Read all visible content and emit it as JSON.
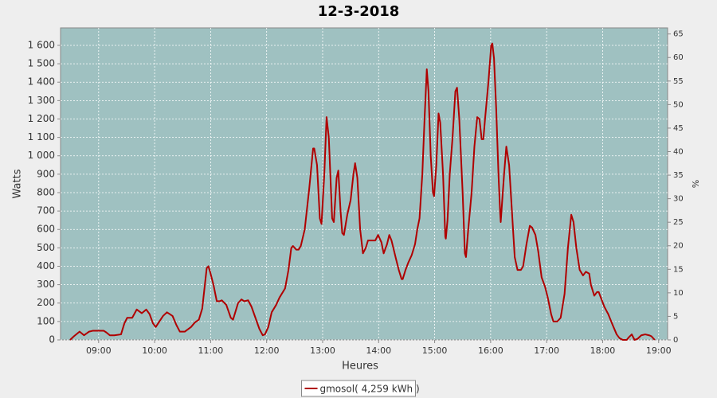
{
  "chart_data": {
    "type": "line",
    "title": "12-3-2018",
    "xlabel": "Heures",
    "ylabel": "Watts",
    "y2label": "%",
    "x": [
      8.49,
      8.56,
      8.66,
      8.74,
      8.83,
      8.9,
      9.0,
      9.09,
      9.14,
      9.2,
      9.28,
      9.4,
      9.46,
      9.51,
      9.6,
      9.68,
      9.77,
      9.85,
      9.91,
      9.97,
      10.02,
      10.15,
      10.22,
      10.32,
      10.39,
      10.45,
      10.54,
      10.65,
      10.72,
      10.79,
      10.85,
      10.89,
      10.93,
      10.96,
      10.99,
      11.05,
      11.11,
      11.16,
      11.2,
      11.28,
      11.36,
      11.4,
      11.49,
      11.55,
      11.6,
      11.67,
      11.73,
      11.8,
      11.87,
      11.93,
      11.97,
      12.03,
      12.09,
      12.17,
      12.23,
      12.29,
      12.33,
      12.39,
      12.44,
      12.47,
      12.53,
      12.57,
      12.61,
      12.68,
      12.76,
      12.83,
      12.85,
      12.9,
      12.95,
      12.98,
      13.03,
      13.07,
      13.11,
      13.17,
      13.2,
      13.25,
      13.28,
      13.32,
      13.35,
      13.38,
      13.44,
      13.5,
      13.55,
      13.58,
      13.62,
      13.67,
      13.72,
      13.77,
      13.81,
      13.88,
      13.94,
      13.99,
      14.05,
      14.09,
      14.15,
      14.19,
      14.23,
      14.31,
      14.36,
      14.41,
      14.43,
      14.48,
      14.53,
      14.59,
      14.65,
      14.69,
      14.73,
      14.78,
      14.82,
      14.86,
      14.89,
      14.93,
      14.97,
      14.99,
      15.03,
      15.07,
      15.1,
      15.15,
      15.19,
      15.2,
      15.23,
      15.27,
      15.32,
      15.37,
      15.4,
      15.44,
      15.5,
      15.54,
      15.56,
      15.6,
      15.66,
      15.71,
      15.76,
      15.8,
      15.84,
      15.87,
      15.9,
      15.96,
      16.01,
      16.03,
      16.06,
      16.1,
      16.14,
      16.17,
      16.18,
      16.24,
      16.28,
      16.33,
      16.37,
      16.43,
      16.48,
      16.54,
      16.58,
      16.64,
      16.7,
      16.74,
      16.8,
      16.85,
      16.91,
      16.97,
      17.02,
      17.08,
      17.12,
      17.19,
      17.25,
      17.32,
      17.38,
      17.44,
      17.48,
      17.53,
      17.59,
      17.65,
      17.7,
      17.76,
      17.79,
      17.85,
      17.9,
      17.93,
      17.98,
      18.03,
      18.1,
      18.18,
      18.25,
      18.3,
      18.36,
      18.43,
      18.47,
      18.52,
      18.57,
      18.62,
      18.69,
      18.76,
      18.83,
      18.87,
      18.93
    ],
    "series": [
      {
        "name": "gmosol( 4,259 kWh )",
        "color": "#b00000",
        "values": [
          0,
          20,
          45,
          25,
          45,
          50,
          50,
          50,
          40,
          25,
          25,
          30,
          90,
          120,
          120,
          165,
          145,
          165,
          140,
          90,
          70,
          130,
          150,
          130,
          80,
          45,
          45,
          70,
          95,
          110,
          170,
          280,
          390,
          400,
          370,
          300,
          210,
          210,
          215,
          190,
          120,
          110,
          200,
          220,
          210,
          215,
          180,
          120,
          60,
          25,
          30,
          70,
          150,
          190,
          230,
          260,
          280,
          380,
          500,
          510,
          490,
          490,
          510,
          600,
          820,
          1040,
          1040,
          950,
          660,
          630,
          900,
          1210,
          1100,
          660,
          640,
          880,
          920,
          700,
          580,
          570,
          680,
          760,
          900,
          960,
          880,
          600,
          470,
          500,
          540,
          540,
          540,
          570,
          530,
          470,
          520,
          570,
          540,
          440,
          380,
          330,
          330,
          380,
          420,
          460,
          520,
          600,
          660,
          900,
          1200,
          1470,
          1350,
          1000,
          800,
          780,
          950,
          1230,
          1180,
          900,
          560,
          550,
          650,
          900,
          1100,
          1350,
          1370,
          1200,
          800,
          470,
          450,
          600,
          800,
          1050,
          1210,
          1200,
          1090,
          1090,
          1200,
          1400,
          1600,
          1610,
          1530,
          1250,
          900,
          690,
          640,
          900,
          1050,
          950,
          750,
          450,
          380,
          380,
          400,
          520,
          620,
          610,
          570,
          480,
          340,
          290,
          230,
          140,
          100,
          100,
          120,
          250,
          500,
          680,
          640,
          500,
          380,
          350,
          370,
          360,
          300,
          240,
          260,
          260,
          220,
          180,
          140,
          80,
          30,
          10,
          0,
          0,
          15,
          30,
          0,
          5,
          25,
          30,
          25,
          20,
          0
        ]
      }
    ],
    "xlim": [
      8.32,
      19.16
    ],
    "xticks": [
      {
        "value": 9,
        "label": "09:00"
      },
      {
        "value": 10,
        "label": "10:00"
      },
      {
        "value": 11,
        "label": "11:00"
      },
      {
        "value": 12,
        "label": "12:00"
      },
      {
        "value": 13,
        "label": "13:00"
      },
      {
        "value": 14,
        "label": "14:00"
      },
      {
        "value": 15,
        "label": "15:00"
      },
      {
        "value": 16,
        "label": "16:00"
      },
      {
        "value": 17,
        "label": "17:00"
      },
      {
        "value": 18,
        "label": "18:00"
      },
      {
        "value": 19,
        "label": "19:00"
      }
    ],
    "ylim": [
      0,
      1695
    ],
    "yticks": [
      0,
      100,
      200,
      300,
      400,
      500,
      600,
      700,
      800,
      900,
      {
        "value": 1000,
        "label": "1 000"
      },
      {
        "value": 1100,
        "label": "1 100"
      },
      {
        "value": 1200,
        "label": "1 200"
      },
      {
        "value": 1300,
        "label": "1 300"
      },
      {
        "value": 1400,
        "label": "1 400"
      },
      {
        "value": 1500,
        "label": "1 500"
      },
      {
        "value": 1600,
        "label": "1 600"
      }
    ],
    "y2lim": [
      0,
      66.3
    ],
    "y2ticks": [
      0,
      5,
      10,
      15,
      20,
      25,
      30,
      35,
      40,
      45,
      50,
      55,
      60,
      65
    ],
    "grid": true,
    "legend": "bottom",
    "background": "#9fc1c1"
  }
}
